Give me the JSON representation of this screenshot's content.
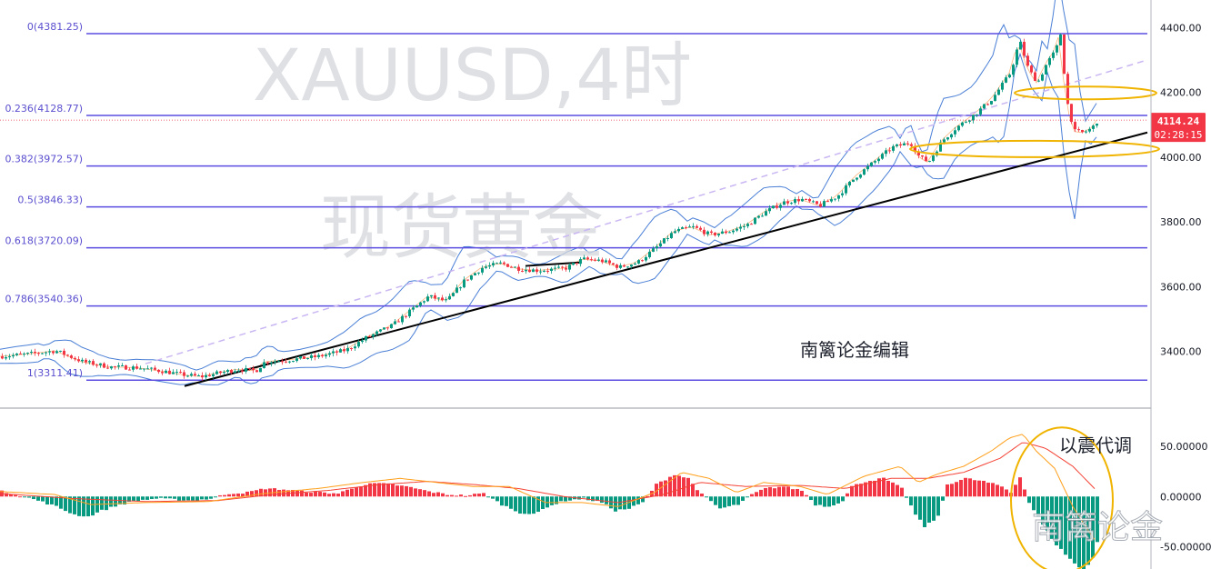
{
  "chart_data": {
    "type": "candlestick",
    "watermark": {
      "symbol": "XAUUSD,4时",
      "name": "现货黄金"
    },
    "price_axis": {
      "range": [
        3225,
        4485
      ],
      "ticks": [
        "4400.00",
        "4200.00",
        "4000.00",
        "3800.00",
        "3600.00",
        "3400.00"
      ],
      "tick_values": [
        4400,
        4200,
        4000,
        3800,
        3600,
        3400
      ]
    },
    "last_price": {
      "value": "4114.24",
      "countdown": "02:28:15",
      "numeric": 4114.24,
      "color": "#f23645"
    },
    "fibonacci": [
      {
        "label": "0(4381.25)",
        "price": 4381.25
      },
      {
        "label": "0.236(4128.77)",
        "price": 4128.77
      },
      {
        "label": "0.382(3972.57)",
        "price": 3972.57
      },
      {
        "label": "0.5(3846.33)",
        "price": 3846.33
      },
      {
        "label": "0.618(3720.09)",
        "price": 3720.09
      },
      {
        "label": "0.786(3540.36)",
        "price": 3540.36
      },
      {
        "label": "1(3311.41)",
        "price": 3311.41
      }
    ],
    "candle_anchors": [
      [
        0,
        3385
      ],
      [
        30,
        3392
      ],
      [
        60,
        3402
      ],
      [
        90,
        3368
      ],
      [
        120,
        3352
      ],
      [
        150,
        3350
      ],
      [
        180,
        3338
      ],
      [
        200,
        3328
      ],
      [
        220,
        3322
      ],
      [
        240,
        3334
      ],
      [
        260,
        3345
      ],
      [
        280,
        3340
      ],
      [
        290,
        3368
      ],
      [
        320,
        3375
      ],
      [
        350,
        3385
      ],
      [
        380,
        3405
      ],
      [
        400,
        3440
      ],
      [
        430,
        3480
      ],
      [
        450,
        3525
      ],
      [
        470,
        3570
      ],
      [
        490,
        3555
      ],
      [
        510,
        3620
      ],
      [
        530,
        3660
      ],
      [
        550,
        3672
      ],
      [
        570,
        3655
      ],
      [
        590,
        3650
      ],
      [
        620,
        3656
      ],
      [
        640,
        3685
      ],
      [
        660,
        3680
      ],
      [
        680,
        3660
      ],
      [
        700,
        3675
      ],
      [
        720,
        3720
      ],
      [
        740,
        3770
      ],
      [
        760,
        3785
      ],
      [
        780,
        3760
      ],
      [
        800,
        3770
      ],
      [
        820,
        3790
      ],
      [
        840,
        3830
      ],
      [
        860,
        3860
      ],
      [
        880,
        3870
      ],
      [
        900,
        3850
      ],
      [
        920,
        3880
      ],
      [
        940,
        3940
      ],
      [
        960,
        3985
      ],
      [
        980,
        4030
      ],
      [
        1000,
        4045
      ],
      [
        1010,
        4000
      ],
      [
        1020,
        3985
      ],
      [
        1035,
        4050
      ],
      [
        1050,
        4090
      ],
      [
        1070,
        4130
      ],
      [
        1090,
        4180
      ],
      [
        1110,
        4260
      ],
      [
        1120,
        4360
      ],
      [
        1130,
        4270
      ],
      [
        1140,
        4230
      ],
      [
        1150,
        4290
      ],
      [
        1160,
        4330
      ],
      [
        1165,
        4380
      ],
      [
        1172,
        4175
      ],
      [
        1180,
        4080
      ],
      [
        1190,
        4075
      ],
      [
        1200,
        4090
      ],
      [
        1206,
        4114
      ]
    ],
    "trendline_black_main": {
      "from": [
        203,
        3293
      ],
      "to": [
        1262,
        4076
      ]
    },
    "trendline_black_short": {
      "from": [
        578,
        3664
      ],
      "to": [
        640,
        3675
      ]
    },
    "channel_line_dashed": {
      "from": [
        160,
        3362
      ],
      "to": [
        1262,
        4300
      ]
    },
    "support_zone_ellipses": [
      {
        "center": [
          1194,
          4198
        ],
        "radii": [
          78,
          7
        ]
      },
      {
        "center": [
          1138,
          4025
        ],
        "radii": [
          137,
          9
        ]
      }
    ],
    "annotation_text": "南篱论金编辑",
    "macd": {
      "ticks": [
        "50.00000",
        "0.00000",
        "-50.00000"
      ],
      "tick_values": [
        50,
        0,
        -50
      ],
      "range": [
        -72,
        86
      ],
      "hist_anchors": [
        [
          0,
          5
        ],
        [
          20,
          1
        ],
        [
          40,
          -4
        ],
        [
          60,
          -10
        ],
        [
          80,
          -18
        ],
        [
          95,
          -20
        ],
        [
          110,
          -14
        ],
        [
          130,
          -8
        ],
        [
          150,
          -4
        ],
        [
          170,
          -2
        ],
        [
          190,
          -3
        ],
        [
          210,
          -4
        ],
        [
          230,
          -2
        ],
        [
          250,
          3
        ],
        [
          270,
          4
        ],
        [
          290,
          8
        ],
        [
          310,
          7
        ],
        [
          330,
          5
        ],
        [
          350,
          4
        ],
        [
          370,
          3
        ],
        [
          390,
          10
        ],
        [
          410,
          13
        ],
        [
          430,
          12
        ],
        [
          450,
          9
        ],
        [
          470,
          5
        ],
        [
          490,
          2
        ],
        [
          510,
          1
        ],
        [
          530,
          3
        ],
        [
          550,
          -8
        ],
        [
          570,
          -16
        ],
        [
          585,
          -18
        ],
        [
          600,
          -10
        ],
        [
          620,
          -4
        ],
        [
          640,
          -2
        ],
        [
          660,
          -6
        ],
        [
          675,
          -14
        ],
        [
          690,
          -12
        ],
        [
          705,
          -6
        ],
        [
          720,
          12
        ],
        [
          740,
          22
        ],
        [
          755,
          18
        ],
        [
          770,
          2
        ],
        [
          790,
          -12
        ],
        [
          810,
          -8
        ],
        [
          825,
          2
        ],
        [
          840,
          8
        ],
        [
          860,
          10
        ],
        [
          880,
          6
        ],
        [
          895,
          -8
        ],
        [
          910,
          -10
        ],
        [
          925,
          -4
        ],
        [
          935,
          10
        ],
        [
          950,
          15
        ],
        [
          970,
          18
        ],
        [
          990,
          8
        ],
        [
          1005,
          -18
        ],
        [
          1015,
          -30
        ],
        [
          1030,
          -20
        ],
        [
          1040,
          12
        ],
        [
          1060,
          18
        ],
        [
          1080,
          15
        ],
        [
          1100,
          10
        ],
        [
          1110,
          4
        ],
        [
          1120,
          20
        ],
        [
          1130,
          -6
        ],
        [
          1145,
          -28
        ],
        [
          1160,
          -48
        ],
        [
          1175,
          -62
        ],
        [
          1190,
          -75
        ],
        [
          1200,
          -60
        ],
        [
          1205,
          -45
        ]
      ],
      "macd_line_anchors": [
        [
          0,
          5
        ],
        [
          60,
          2
        ],
        [
          100,
          -8
        ],
        [
          160,
          -6
        ],
        [
          230,
          -5
        ],
        [
          290,
          3
        ],
        [
          350,
          8
        ],
        [
          400,
          14
        ],
        [
          440,
          18
        ],
        [
          480,
          14
        ],
        [
          520,
          10
        ],
        [
          560,
          10
        ],
        [
          600,
          -6
        ],
        [
          640,
          -6
        ],
        [
          680,
          -10
        ],
        [
          720,
          4
        ],
        [
          750,
          24
        ],
        [
          780,
          18
        ],
        [
          810,
          4
        ],
        [
          840,
          14
        ],
        [
          880,
          10
        ],
        [
          910,
          2
        ],
        [
          950,
          20
        ],
        [
          990,
          30
        ],
        [
          1010,
          14
        ],
        [
          1030,
          22
        ],
        [
          1060,
          30
        ],
        [
          1090,
          45
        ],
        [
          1110,
          58
        ],
        [
          1125,
          62
        ],
        [
          1140,
          45
        ],
        [
          1160,
          28
        ],
        [
          1180,
          -10
        ],
        [
          1200,
          -38
        ],
        [
          1206,
          -45
        ]
      ],
      "signal_line_anchors": [
        [
          0,
          3
        ],
        [
          80,
          -2
        ],
        [
          160,
          -5
        ],
        [
          240,
          -4
        ],
        [
          300,
          2
        ],
        [
          360,
          6
        ],
        [
          420,
          12
        ],
        [
          470,
          15
        ],
        [
          520,
          12
        ],
        [
          570,
          8
        ],
        [
          620,
          0
        ],
        [
          680,
          -6
        ],
        [
          730,
          2
        ],
        [
          770,
          14
        ],
        [
          820,
          10
        ],
        [
          880,
          11
        ],
        [
          930,
          8
        ],
        [
          980,
          18
        ],
        [
          1020,
          18
        ],
        [
          1060,
          24
        ],
        [
          1100,
          38
        ],
        [
          1125,
          54
        ],
        [
          1150,
          48
        ],
        [
          1180,
          30
        ],
        [
          1206,
          6
        ]
      ],
      "highlight_ellipse": {
        "center": [
          1168,
          0
        ],
        "radii": [
          56,
          80
        ]
      },
      "annotation": "以震代调",
      "watermark": "南篱论金"
    },
    "colors": {
      "up": "#089981",
      "down": "#f23645",
      "fib": "#5b4de0",
      "trend": "#000000",
      "channel": "#c9b6f2",
      "bands": "#4a7fd6",
      "ellipse": "#f0b400",
      "macd_pos": "#f23645",
      "macd_neg": "#089981",
      "macd_line": "#f44336",
      "signal_line": "#ff9f1a"
    },
    "grid": false
  }
}
